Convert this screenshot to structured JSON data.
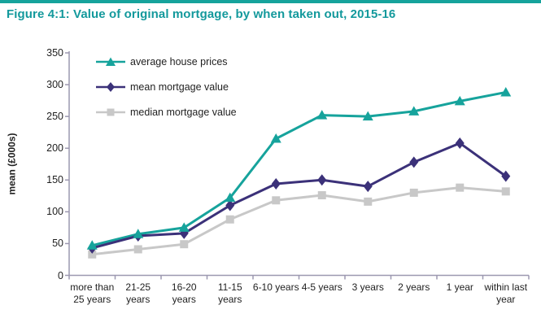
{
  "title": "Figure 4:1: Value of original mortgage, by when taken out, 2015-16",
  "colors": {
    "top_border": "#16A39C",
    "title_text": "#13999C",
    "axis_line": "#9C98B0",
    "label_text": "#1f1f1f",
    "teal_series": "#16A39C",
    "purple_series": "#3B3179",
    "gray_series": "#C8C8C8"
  },
  "chart_data": {
    "type": "line",
    "title": "Figure 4:1: Value of original mortgage, by when taken out, 2015-16",
    "xlabel": "",
    "ylabel": "mean (£000s)",
    "ylim": [
      0,
      350
    ],
    "yticks": [
      0,
      50,
      100,
      150,
      200,
      250,
      300,
      350
    ],
    "grid": false,
    "legend_position": "top-left",
    "categories": [
      "more than 25 years",
      "21-25 years",
      "16-20 years",
      "11-15 years",
      "6-10 years",
      "4-5 years",
      "3 years",
      "2 years",
      "1 year",
      "within last year"
    ],
    "series": [
      {
        "name": "average house prices",
        "marker": "triangle",
        "color": "#16A39C",
        "values": [
          47,
          65,
          75,
          122,
          215,
          252,
          250,
          258,
          274,
          288
        ]
      },
      {
        "name": "mean mortgage value",
        "marker": "diamond",
        "color": "#3B3179",
        "values": [
          43,
          62,
          66,
          110,
          144,
          150,
          140,
          178,
          208,
          156
        ]
      },
      {
        "name": "median mortgage value",
        "marker": "square",
        "color": "#C8C8C8",
        "values": [
          33,
          41,
          49,
          88,
          118,
          126,
          116,
          130,
          138,
          132
        ]
      }
    ]
  }
}
